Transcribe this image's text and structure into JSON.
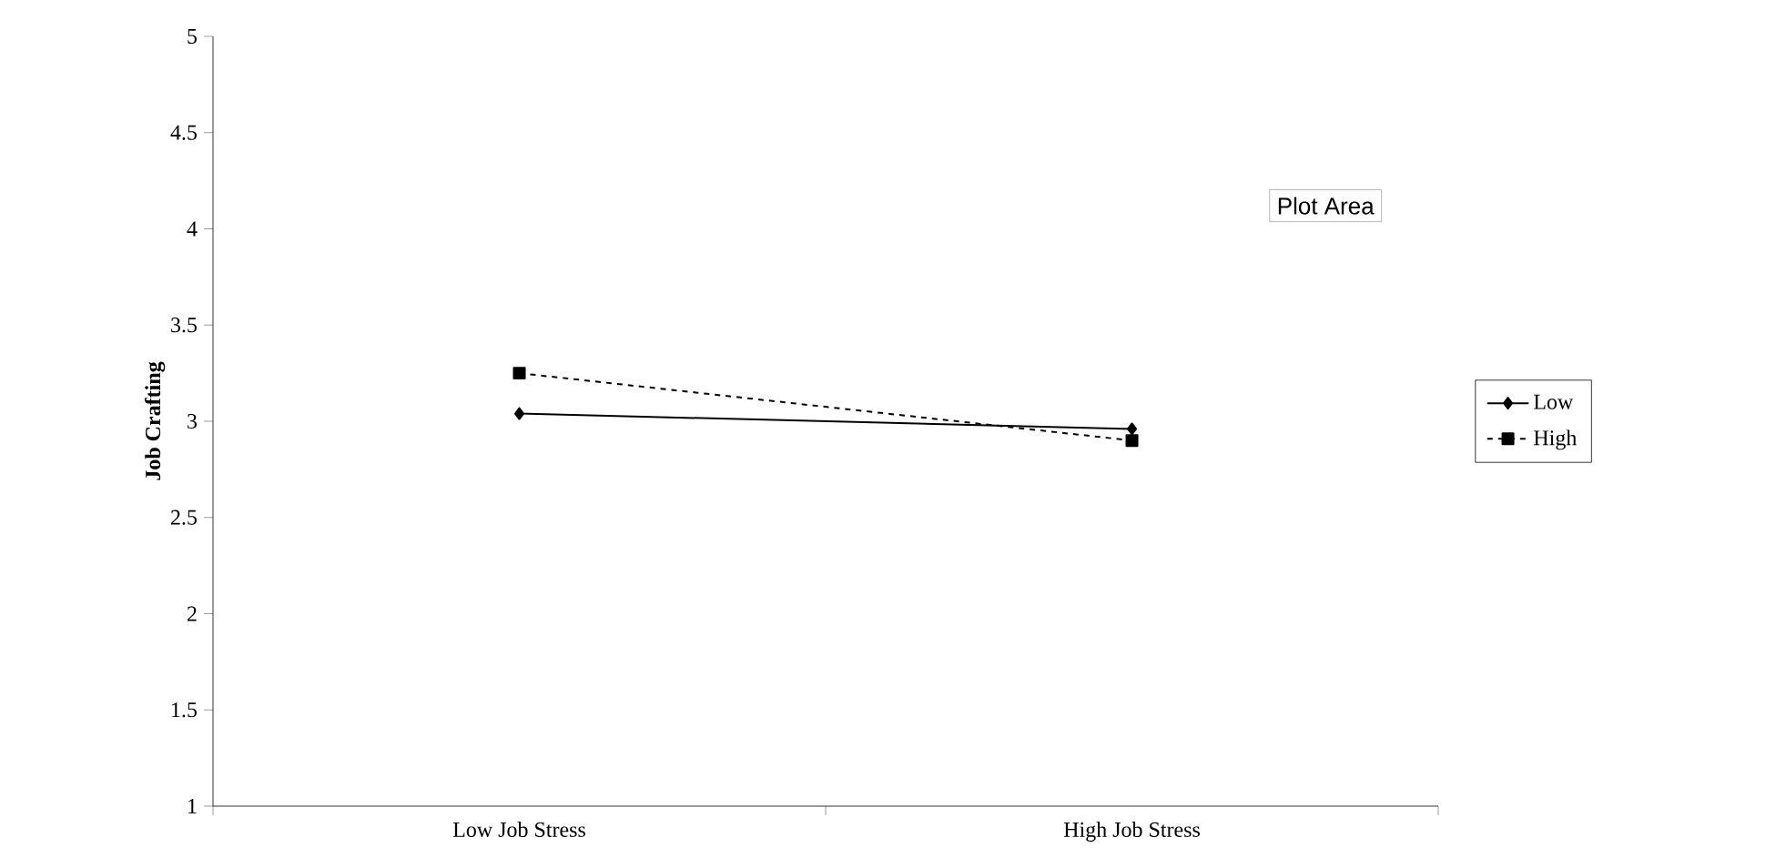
{
  "chart_data": {
    "type": "line",
    "ylabel": "Job Crafting",
    "categories": [
      "Low Job Stress",
      "High Job Stress"
    ],
    "series": [
      {
        "name": "Low",
        "color": "#000000",
        "values": [
          3.04,
          2.96
        ],
        "marker": "diamond",
        "line_style": "solid"
      },
      {
        "name": "High",
        "color": "#000000",
        "values": [
          3.25,
          2.9
        ],
        "marker": "square",
        "line_style": "dashed"
      }
    ],
    "ylim": [
      1,
      5
    ],
    "yticks": [
      1,
      1.5,
      2,
      2.5,
      3,
      3.5,
      4,
      4.5,
      5
    ],
    "legend": "right",
    "grid": false,
    "annotations": [
      "Plot Area"
    ]
  }
}
